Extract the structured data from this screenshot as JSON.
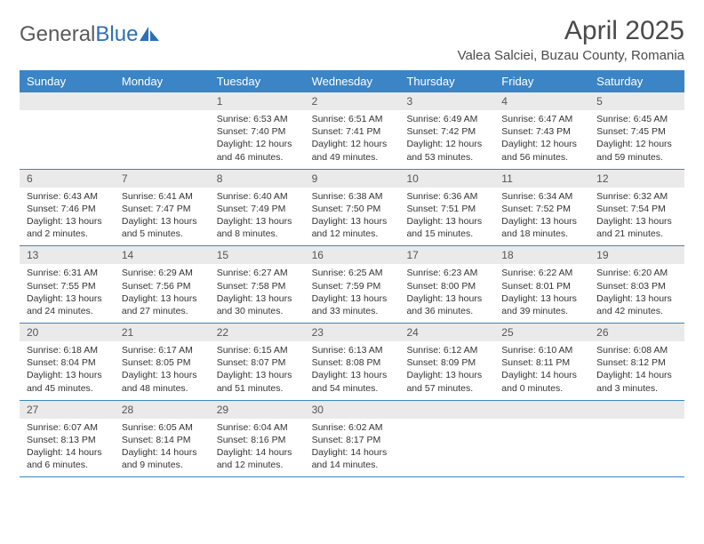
{
  "logo": {
    "text_general": "General",
    "text_blue": "Blue"
  },
  "month_title": "April 2025",
  "location": "Valea Salciei, Buzau County, Romania",
  "colors": {
    "header_bg": "#3b85c6",
    "header_text": "#ffffff",
    "date_bg": "#eaeaea",
    "border": "#3b85c6",
    "text": "#333333",
    "title": "#4a4a4a"
  },
  "day_headers": [
    "Sunday",
    "Monday",
    "Tuesday",
    "Wednesday",
    "Thursday",
    "Friday",
    "Saturday"
  ],
  "weeks": [
    {
      "dates": [
        "",
        "",
        "1",
        "2",
        "3",
        "4",
        "5"
      ],
      "cells": [
        "",
        "",
        "Sunrise: 6:53 AM\nSunset: 7:40 PM\nDaylight: 12 hours and 46 minutes.",
        "Sunrise: 6:51 AM\nSunset: 7:41 PM\nDaylight: 12 hours and 49 minutes.",
        "Sunrise: 6:49 AM\nSunset: 7:42 PM\nDaylight: 12 hours and 53 minutes.",
        "Sunrise: 6:47 AM\nSunset: 7:43 PM\nDaylight: 12 hours and 56 minutes.",
        "Sunrise: 6:45 AM\nSunset: 7:45 PM\nDaylight: 12 hours and 59 minutes."
      ]
    },
    {
      "dates": [
        "6",
        "7",
        "8",
        "9",
        "10",
        "11",
        "12"
      ],
      "cells": [
        "Sunrise: 6:43 AM\nSunset: 7:46 PM\nDaylight: 13 hours and 2 minutes.",
        "Sunrise: 6:41 AM\nSunset: 7:47 PM\nDaylight: 13 hours and 5 minutes.",
        "Sunrise: 6:40 AM\nSunset: 7:49 PM\nDaylight: 13 hours and 8 minutes.",
        "Sunrise: 6:38 AM\nSunset: 7:50 PM\nDaylight: 13 hours and 12 minutes.",
        "Sunrise: 6:36 AM\nSunset: 7:51 PM\nDaylight: 13 hours and 15 minutes.",
        "Sunrise: 6:34 AM\nSunset: 7:52 PM\nDaylight: 13 hours and 18 minutes.",
        "Sunrise: 6:32 AM\nSunset: 7:54 PM\nDaylight: 13 hours and 21 minutes."
      ]
    },
    {
      "dates": [
        "13",
        "14",
        "15",
        "16",
        "17",
        "18",
        "19"
      ],
      "cells": [
        "Sunrise: 6:31 AM\nSunset: 7:55 PM\nDaylight: 13 hours and 24 minutes.",
        "Sunrise: 6:29 AM\nSunset: 7:56 PM\nDaylight: 13 hours and 27 minutes.",
        "Sunrise: 6:27 AM\nSunset: 7:58 PM\nDaylight: 13 hours and 30 minutes.",
        "Sunrise: 6:25 AM\nSunset: 7:59 PM\nDaylight: 13 hours and 33 minutes.",
        "Sunrise: 6:23 AM\nSunset: 8:00 PM\nDaylight: 13 hours and 36 minutes.",
        "Sunrise: 6:22 AM\nSunset: 8:01 PM\nDaylight: 13 hours and 39 minutes.",
        "Sunrise: 6:20 AM\nSunset: 8:03 PM\nDaylight: 13 hours and 42 minutes."
      ]
    },
    {
      "dates": [
        "20",
        "21",
        "22",
        "23",
        "24",
        "25",
        "26"
      ],
      "cells": [
        "Sunrise: 6:18 AM\nSunset: 8:04 PM\nDaylight: 13 hours and 45 minutes.",
        "Sunrise: 6:17 AM\nSunset: 8:05 PM\nDaylight: 13 hours and 48 minutes.",
        "Sunrise: 6:15 AM\nSunset: 8:07 PM\nDaylight: 13 hours and 51 minutes.",
        "Sunrise: 6:13 AM\nSunset: 8:08 PM\nDaylight: 13 hours and 54 minutes.",
        "Sunrise: 6:12 AM\nSunset: 8:09 PM\nDaylight: 13 hours and 57 minutes.",
        "Sunrise: 6:10 AM\nSunset: 8:11 PM\nDaylight: 14 hours and 0 minutes.",
        "Sunrise: 6:08 AM\nSunset: 8:12 PM\nDaylight: 14 hours and 3 minutes."
      ]
    },
    {
      "dates": [
        "27",
        "28",
        "29",
        "30",
        "",
        "",
        ""
      ],
      "cells": [
        "Sunrise: 6:07 AM\nSunset: 8:13 PM\nDaylight: 14 hours and 6 minutes.",
        "Sunrise: 6:05 AM\nSunset: 8:14 PM\nDaylight: 14 hours and 9 minutes.",
        "Sunrise: 6:04 AM\nSunset: 8:16 PM\nDaylight: 14 hours and 12 minutes.",
        "Sunrise: 6:02 AM\nSunset: 8:17 PM\nDaylight: 14 hours and 14 minutes.",
        "",
        "",
        ""
      ]
    }
  ]
}
